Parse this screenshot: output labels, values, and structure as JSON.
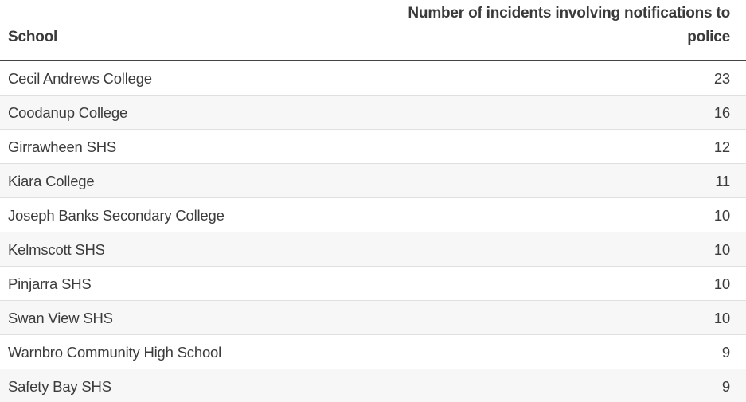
{
  "table": {
    "columns": [
      "School",
      "Number of incidents involving notifications to police"
    ],
    "rows": [
      {
        "school": "Cecil Andrews College",
        "count": 23
      },
      {
        "school": "Coodanup College",
        "count": 16
      },
      {
        "school": "Girrawheen SHS",
        "count": 12
      },
      {
        "school": "Kiara College",
        "count": 11
      },
      {
        "school": "Joseph Banks Secondary College",
        "count": 10
      },
      {
        "school": "Kelmscott SHS",
        "count": 10
      },
      {
        "school": "Pinjarra SHS",
        "count": 10
      },
      {
        "school": "Swan View SHS",
        "count": 10
      },
      {
        "school": "Warnbro Community High School",
        "count": 9
      },
      {
        "school": "Safety Bay SHS",
        "count": 9
      }
    ]
  },
  "colors": {
    "background": "#ffffff",
    "zebra_row": "#f7f7f7",
    "row_divider": "#e0e0e0",
    "header_rule": "#424242",
    "text": "#3c3c3d"
  },
  "chart_data": {
    "type": "table",
    "title": "",
    "columns": [
      "School",
      "Number of incidents involving notifications to police"
    ],
    "rows": [
      [
        "Cecil Andrews College",
        23
      ],
      [
        "Coodanup College",
        16
      ],
      [
        "Girrawheen SHS",
        12
      ],
      [
        "Kiara College",
        11
      ],
      [
        "Joseph Banks Secondary College",
        10
      ],
      [
        "Kelmscott SHS",
        10
      ],
      [
        "Pinjarra SHS",
        10
      ],
      [
        "Swan View SHS",
        10
      ],
      [
        "Warnbro Community High School",
        9
      ],
      [
        "Safety Bay SHS",
        9
      ]
    ],
    "layout_hints": {
      "zebra_striping": true,
      "value_alignment": "right",
      "header_alignment": [
        "left-bottom",
        "right-bottom"
      ]
    }
  }
}
